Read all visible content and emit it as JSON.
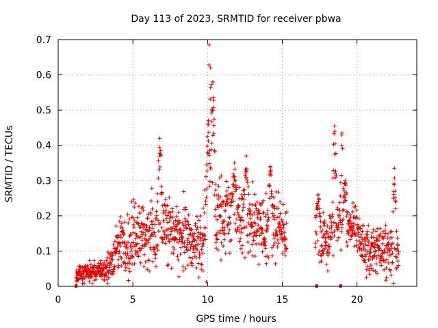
{
  "chart_data": {
    "type": "scatter",
    "title": "Day 113 of 2023, SRMTID for receiver pbwa",
    "xlabel": "GPS time / hours",
    "ylabel": "SRMTID / TECUs",
    "xlim": [
      0,
      24
    ],
    "ylim": [
      0,
      0.7
    ],
    "xticks": [
      0,
      5,
      10,
      15,
      20
    ],
    "yticks": [
      0,
      0.1,
      0.2,
      0.3,
      0.4,
      0.5,
      0.6,
      0.7
    ],
    "grid": true,
    "marker": "plus",
    "color": "#e00000",
    "envelope": {
      "x": [
        1.2,
        2.0,
        2.5,
        3.0,
        3.3,
        3.6,
        3.9,
        4.2,
        4.5,
        5.0,
        5.5,
        6.0,
        6.5,
        7.0,
        7.5,
        8.0,
        8.5,
        9.0,
        9.3,
        9.6,
        9.8,
        10.0,
        10.2,
        10.5,
        11.0,
        11.5,
        12.0,
        12.5,
        13.0,
        13.5,
        14.0,
        14.5,
        15.0,
        15.3,
        17.2,
        17.5,
        18.0,
        18.5,
        19.0,
        19.5,
        20.0,
        20.5,
        21.0,
        21.5,
        22.0,
        22.5,
        22.8
      ],
      "y": [
        0.035,
        0.04,
        0.045,
        0.045,
        0.05,
        0.07,
        0.1,
        0.13,
        0.12,
        0.14,
        0.14,
        0.14,
        0.15,
        0.17,
        0.16,
        0.15,
        0.15,
        0.14,
        0.12,
        0.13,
        0.17,
        0.22,
        0.25,
        0.22,
        0.2,
        0.22,
        0.21,
        0.19,
        0.18,
        0.16,
        0.15,
        0.16,
        0.16,
        0.17,
        0.16,
        0.15,
        0.12,
        0.16,
        0.14,
        0.18,
        0.16,
        0.11,
        0.1,
        0.1,
        0.1,
        0.09,
        0.08
      ]
    },
    "spread": {
      "x": [
        1.2,
        3.0,
        3.6,
        5.0,
        7.0,
        9.5,
        10.0,
        11.0,
        13.0,
        15.3,
        17.2,
        20.0,
        22.8
      ],
      "y": [
        0.012,
        0.014,
        0.03,
        0.05,
        0.05,
        0.04,
        0.07,
        0.05,
        0.05,
        0.04,
        0.04,
        0.03,
        0.035
      ]
    },
    "peaks": {
      "x": [
        6.8,
        10.1,
        10.2,
        10.35,
        10.05,
        11.8,
        12.6,
        14.2,
        17.4,
        18.5,
        19.0,
        19.2,
        22.5
      ],
      "y": [
        0.42,
        0.685,
        0.62,
        0.58,
        0.47,
        0.35,
        0.37,
        0.34,
        0.26,
        0.455,
        0.435,
        0.3,
        0.335
      ]
    },
    "gaps": [
      [
        15.3,
        17.2
      ]
    ],
    "axis_markers": {
      "x": [
        1.2,
        17.3,
        18.9
      ],
      "y": [
        0,
        0,
        0
      ]
    }
  }
}
